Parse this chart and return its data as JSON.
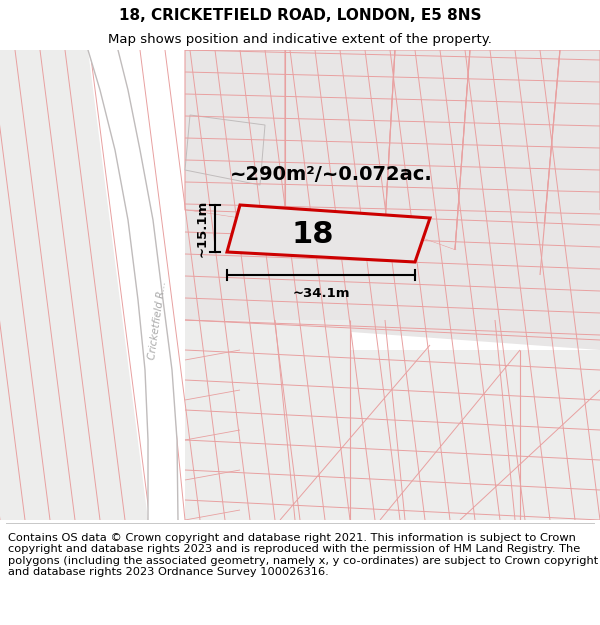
{
  "title_line1": "18, CRICKETFIELD ROAD, LONDON, E5 8NS",
  "title_line2": "Map shows position and indicative extent of the property.",
  "area_label": "~290m²/~0.072ac.",
  "property_number": "18",
  "width_label": "~34.1m",
  "height_label": "~15.1m",
  "road_label": "Cricketfield R...",
  "footer_text": "Contains OS data © Crown copyright and database right 2021. This information is subject to Crown copyright and database rights 2023 and is reproduced with the permission of HM Land Registry. The polygons (including the associated geometry, namely x, y co-ordinates) are subject to Crown copyright and database rights 2023 Ordnance Survey 100026316.",
  "bg_color": "#ffffff",
  "map_bg": "#f5f4f4",
  "block_fill": "#e8e6e6",
  "block_fill2": "#ededec",
  "road_fill": "#ffffff",
  "pink_line": "#e8a0a0",
  "gray_line": "#c0bcbc",
  "property_border": "#cc0000",
  "property_fill": "#e8e6e6",
  "title_fontsize": 11,
  "subtitle_fontsize": 9.5,
  "footer_fontsize": 8.2,
  "area_fontsize": 14,
  "num_fontsize": 22,
  "dim_fontsize": 9.5
}
